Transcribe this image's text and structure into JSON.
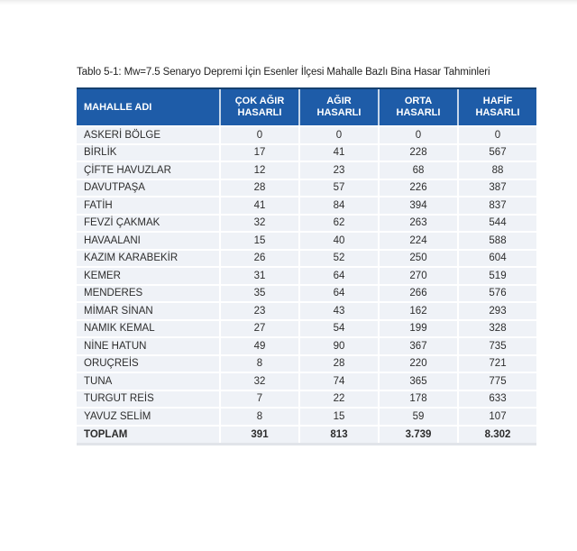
{
  "caption": "Tablo 5-1: Mw=7.5 Senaryo Depremi İçin Esenler İlçesi Mahalle Bazlı Bina Hasar Tahminleri",
  "table": {
    "headers": [
      "MAHALLE ADI",
      "ÇOK AĞIR\nHASARLI",
      "AĞIR\nHASARLI",
      "ORTA\nHASARLI",
      "HAFİF\nHASARLI"
    ],
    "rows": [
      {
        "name": "ASKERİ BÖLGE",
        "values": [
          "0",
          "0",
          "0",
          "0"
        ]
      },
      {
        "name": "BİRLİK",
        "values": [
          "17",
          "41",
          "228",
          "567"
        ]
      },
      {
        "name": "ÇİFTE HAVUZLAR",
        "values": [
          "12",
          "23",
          "68",
          "88"
        ]
      },
      {
        "name": "DAVUTPAŞA",
        "values": [
          "28",
          "57",
          "226",
          "387"
        ]
      },
      {
        "name": "FATİH",
        "values": [
          "41",
          "84",
          "394",
          "837"
        ]
      },
      {
        "name": "FEVZİ ÇAKMAK",
        "values": [
          "32",
          "62",
          "263",
          "544"
        ]
      },
      {
        "name": "HAVAALANI",
        "values": [
          "15",
          "40",
          "224",
          "588"
        ]
      },
      {
        "name": "KAZIM KARABEKİR",
        "values": [
          "26",
          "52",
          "250",
          "604"
        ]
      },
      {
        "name": "KEMER",
        "values": [
          "31",
          "64",
          "270",
          "519"
        ]
      },
      {
        "name": "MENDERES",
        "values": [
          "35",
          "64",
          "266",
          "576"
        ]
      },
      {
        "name": "MİMAR SİNAN",
        "values": [
          "23",
          "43",
          "162",
          "293"
        ]
      },
      {
        "name": "NAMIK KEMAL",
        "values": [
          "27",
          "54",
          "199",
          "328"
        ]
      },
      {
        "name": "NİNE HATUN",
        "values": [
          "49",
          "90",
          "367",
          "735"
        ]
      },
      {
        "name": "ORUÇREİS",
        "values": [
          "8",
          "28",
          "220",
          "721"
        ]
      },
      {
        "name": "TUNA",
        "values": [
          "32",
          "74",
          "365",
          "775"
        ]
      },
      {
        "name": "TURGUT REİS",
        "values": [
          "7",
          "22",
          "178",
          "633"
        ]
      },
      {
        "name": "YAVUZ SELİM",
        "values": [
          "8",
          "15",
          "59",
          "107"
        ]
      }
    ],
    "total_row": {
      "name": "TOPLAM",
      "values": [
        "391",
        "813",
        "3.739",
        "8.302"
      ]
    }
  },
  "colors": {
    "header_bg": "#1E5CA8",
    "header_top_border": "#15406F",
    "header_text": "#FFFFFF",
    "row_bg": "#EFF2F7",
    "body_text": "#2D2D2D",
    "table_bottom_strip": "#E1E4E9"
  }
}
